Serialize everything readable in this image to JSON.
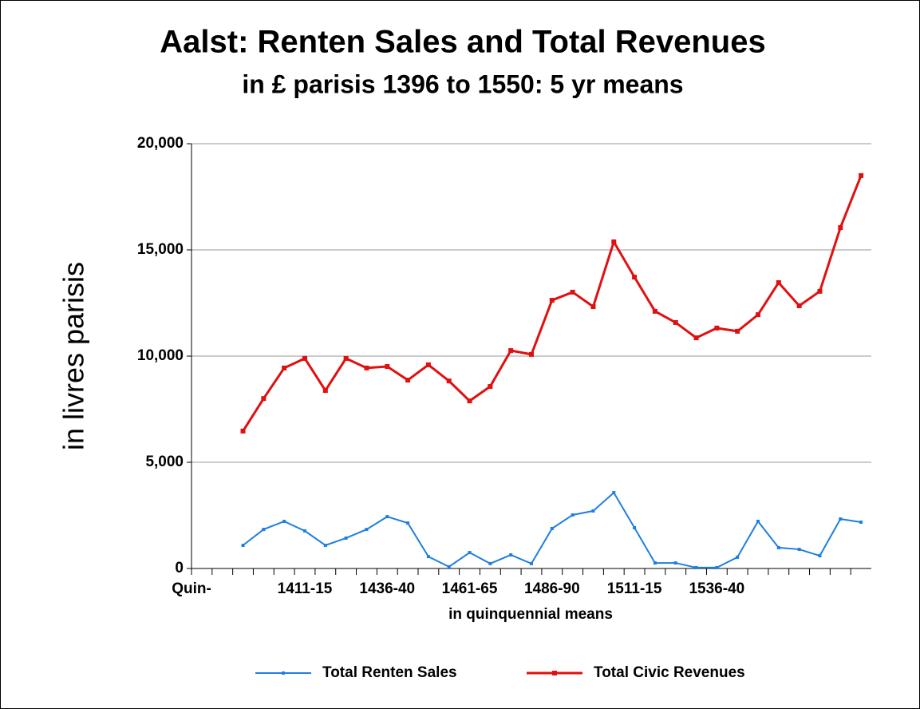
{
  "chart_data": {
    "type": "line",
    "title": "Aalst: Renten Sales and Total Revenues",
    "subtitle": "in £ parisis 1396 to 1550: 5 yr means",
    "y_label": "in livres parisis",
    "x_label": "in quinquennial means",
    "categories": [
      "Quin-",
      null,
      null,
      null,
      null,
      "1411-15",
      null,
      null,
      null,
      "1436-40",
      null,
      null,
      null,
      "1461-65",
      null,
      null,
      null,
      "1486-90",
      null,
      null,
      null,
      "1511-15",
      null,
      null,
      null,
      "1536-40",
      null,
      null,
      null,
      null,
      null,
      null,
      null
    ],
    "series": [
      {
        "name": "Total Renten Sales",
        "color": "#1e7fe0",
        "values": [
          null,
          null,
          1090,
          1840,
          2220,
          1770,
          1090,
          1430,
          1840,
          2440,
          2140,
          560,
          80,
          750,
          230,
          640,
          230,
          1880,
          2520,
          2710,
          3570,
          1920,
          260,
          260,
          40,
          40,
          530,
          2220,
          980,
          900,
          600,
          2330,
          2180
        ]
      },
      {
        "name": "Total Civic Revenues",
        "color": "#e01010",
        "values": [
          null,
          null,
          6470,
          8000,
          9440,
          9890,
          8380,
          9890,
          9440,
          9510,
          8870,
          9590,
          8830,
          7890,
          8570,
          10260,
          10080,
          12630,
          13010,
          12330,
          15380,
          13720,
          12110,
          11580,
          10860,
          11320,
          11170,
          11950,
          13460,
          12370,
          13050,
          16050,
          18500
        ]
      }
    ],
    "ylim": [
      0,
      20000
    ],
    "yticks": [
      0,
      {
        "value": 5000,
        "label": "5,000"
      },
      {
        "value": 10000,
        "label": "10,000"
      },
      {
        "value": 15000,
        "label": "15,000"
      },
      {
        "value": 20000,
        "label": "20,000"
      }
    ],
    "grid": true,
    "legend": "bottom"
  }
}
